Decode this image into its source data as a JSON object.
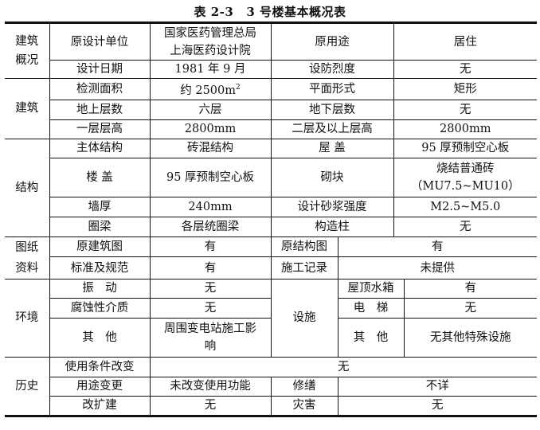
{
  "title": {
    "number": "表 2-3",
    "text": "3 号楼基本概况表"
  },
  "overview": {
    "section": "建筑概况",
    "rows": [
      {
        "l1": "原设计单位",
        "v1": "国家医药管理总局上海医药设计院",
        "v1_line1": "国家医药管理总局",
        "v1_line2": "上海医药设计院",
        "l2": "原用途",
        "v2": "居住"
      },
      {
        "l1": "设计日期",
        "v1": "1981 年 9 月",
        "l2": "设防烈度",
        "v2": "无"
      }
    ]
  },
  "building": {
    "section": "建筑",
    "rows": [
      {
        "l1": "检测面积",
        "v1": "约 2500m",
        "v1_sup": "2",
        "l2": "平面形式",
        "v2": "矩形"
      },
      {
        "l1": "地上层数",
        "v1": "六层",
        "l2": "地下层数",
        "v2": "无"
      },
      {
        "l1": "一层层高",
        "v1": "2800mm",
        "l2": "二层及以上层高",
        "v2": "2800mm"
      }
    ]
  },
  "structure": {
    "section": "结构",
    "rows": [
      {
        "l1": "主体结构",
        "v1": "砖混结构",
        "l2": "屋 盖",
        "v2": "95 厚预制空心板"
      },
      {
        "l1": "楼 盖",
        "v1": "95 厚预制空心板",
        "l2": "砌块",
        "v2_line1": "烧结普通砖",
        "v2_line2": "（MU7.5~MU10）"
      },
      {
        "l1": "墙厚",
        "v1": "240mm",
        "l2": "设计砂浆强度",
        "v2": "M2.5~M5.0"
      },
      {
        "l1": "圈梁",
        "v1": "各层统圈梁",
        "l2": "构造柱",
        "v2": "无"
      }
    ]
  },
  "drawings": {
    "section_line1": "图纸",
    "section_line2": "资料",
    "rows": [
      {
        "l1": "原建筑图",
        "v1": "有",
        "l2": "原结构图",
        "v2": "有"
      },
      {
        "l1": "标准及规范",
        "v1": "有",
        "l2": "施工记录",
        "v2": "未提供"
      }
    ]
  },
  "environment": {
    "section": "环境",
    "facilities": "设施",
    "rows": [
      {
        "l1": "振　动",
        "v1": "无",
        "l2": "屋顶水箱",
        "v2": "有"
      },
      {
        "l1": "腐蚀性介质",
        "v1": "无",
        "l2": "电　梯",
        "v2": "无"
      },
      {
        "l1": "其　他",
        "v1": "周围变电站施工影响",
        "v1_line1": "周围变电站施工影",
        "v1_line2": "响",
        "l2": "其　他",
        "v2": "无其他特殊设施"
      }
    ]
  },
  "history": {
    "section": "历史",
    "rows": [
      {
        "l1": "使用条件改变",
        "v1": "无"
      },
      {
        "l1": "用途变更",
        "v1": "未改变使用功能",
        "l2": "修缮",
        "v2": "不详"
      },
      {
        "l1": "改扩建",
        "v1": "无",
        "l2": "灾害",
        "v2": "无"
      }
    ]
  }
}
